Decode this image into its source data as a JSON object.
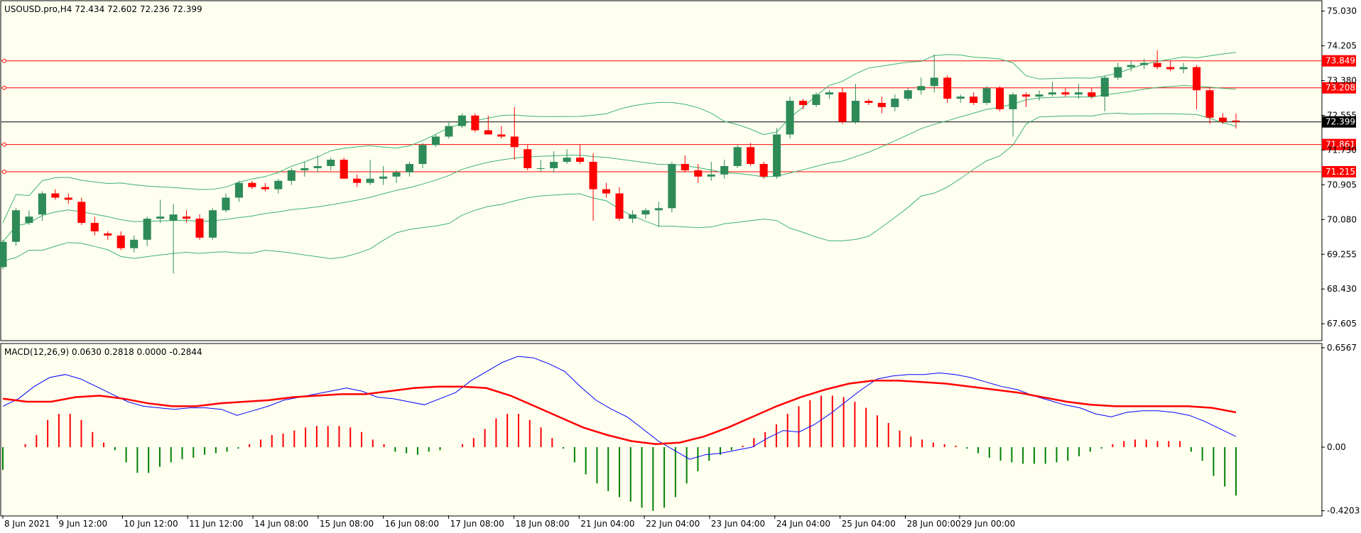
{
  "main": {
    "title": "USOUSD.pro,H4  72.434 72.602 72.236 72.399",
    "price_ticks": [
      "75.030",
      "74.205",
      "73.380",
      "72.555",
      "71.730",
      "70.905",
      "70.080",
      "69.255",
      "68.430",
      "67.605"
    ],
    "price_tick_values": [
      75.03,
      74.205,
      73.38,
      72.555,
      71.73,
      70.905,
      70.08,
      69.255,
      68.43,
      67.605
    ],
    "ylim": [
      67.22,
      75.26
    ]
  },
  "macd": {
    "title": "MACD(12,26,9) 0.0630 0.2818 0.0000 -0.2844",
    "ticks": [
      "0.6567",
      "0.00",
      "-0.4203"
    ],
    "tick_values": [
      0.6567,
      0.0,
      -0.4203
    ],
    "ylim": [
      -0.45,
      0.68
    ]
  },
  "time_labels": [
    "8 Jun 2021",
    "9 Jun 12:00",
    "10 Jun 12:00",
    "11 Jun 12:00",
    "14 Jun 08:00",
    "15 Jun 08:00",
    "16 Jun 08:00",
    "17 Jun 08:00",
    "18 Jun 08:00",
    "21 Jun 04:00",
    "22 Jun 04:00",
    "23 Jun 04:00",
    "24 Jun 04:00",
    "25 Jun 04:00",
    "28 Jun 00:00",
    "29 Jun 00:00"
  ],
  "colors": {
    "background": "#fffff0",
    "frame": "#000000",
    "bull": "#2e8b57",
    "bear": "#ff0000",
    "bands": "#3cb371",
    "macd_line": "#0000ff",
    "signal_line": "#ff0000",
    "hline": "#ff0000",
    "current_price": "#000000"
  },
  "chart_data": [
    {
      "type": "candlestick",
      "title": "USOUSD.pro,H4  72.434 72.602 72.236 72.399",
      "series_bands": [
        "upper",
        "middle",
        "lower"
      ],
      "horizontal_lines": [
        73.849,
        73.208,
        71.861,
        71.215
      ],
      "current_price": 72.399,
      "candles": [
        {
          "o": 68.95,
          "h": 69.6,
          "l": 68.9,
          "c": 69.55
        },
        {
          "o": 69.55,
          "h": 70.35,
          "l": 69.45,
          "c": 70.3
        },
        {
          "o": 70.0,
          "h": 70.3,
          "l": 69.95,
          "c": 70.15
        },
        {
          "o": 70.2,
          "h": 70.75,
          "l": 70.05,
          "c": 70.7
        },
        {
          "o": 70.7,
          "h": 70.8,
          "l": 70.55,
          "c": 70.6
        },
        {
          "o": 70.6,
          "h": 70.7,
          "l": 70.45,
          "c": 70.55
        },
        {
          "o": 70.5,
          "h": 70.6,
          "l": 69.95,
          "c": 70.0
        },
        {
          "o": 70.0,
          "h": 70.15,
          "l": 69.7,
          "c": 69.8
        },
        {
          "o": 69.75,
          "h": 69.8,
          "l": 69.6,
          "c": 69.7
        },
        {
          "o": 69.7,
          "h": 69.8,
          "l": 69.35,
          "c": 69.4
        },
        {
          "o": 69.4,
          "h": 69.7,
          "l": 69.3,
          "c": 69.6
        },
        {
          "o": 69.6,
          "h": 70.15,
          "l": 69.45,
          "c": 70.1
        },
        {
          "o": 70.1,
          "h": 70.55,
          "l": 70.0,
          "c": 70.15
        },
        {
          "o": 70.05,
          "h": 70.45,
          "l": 68.8,
          "c": 70.2
        },
        {
          "o": 70.15,
          "h": 70.3,
          "l": 70.0,
          "c": 70.1
        },
        {
          "o": 70.1,
          "h": 70.2,
          "l": 69.6,
          "c": 69.65
        },
        {
          "o": 69.65,
          "h": 70.35,
          "l": 69.6,
          "c": 70.3
        },
        {
          "o": 70.3,
          "h": 70.7,
          "l": 70.25,
          "c": 70.6
        },
        {
          "o": 70.6,
          "h": 71.0,
          "l": 70.5,
          "c": 70.95
        },
        {
          "o": 70.95,
          "h": 71.0,
          "l": 70.8,
          "c": 70.85
        },
        {
          "o": 70.85,
          "h": 70.95,
          "l": 70.75,
          "c": 70.8
        },
        {
          "o": 70.8,
          "h": 71.05,
          "l": 70.7,
          "c": 71.0
        },
        {
          "o": 71.0,
          "h": 71.3,
          "l": 70.9,
          "c": 71.25
        },
        {
          "o": 71.25,
          "h": 71.45,
          "l": 71.1,
          "c": 71.3
        },
        {
          "o": 71.3,
          "h": 71.6,
          "l": 71.2,
          "c": 71.35
        },
        {
          "o": 71.35,
          "h": 71.55,
          "l": 71.25,
          "c": 71.5
        },
        {
          "o": 71.5,
          "h": 71.55,
          "l": 71.05,
          "c": 71.05
        },
        {
          "o": 71.05,
          "h": 71.15,
          "l": 70.85,
          "c": 70.95
        },
        {
          "o": 70.95,
          "h": 71.5,
          "l": 70.9,
          "c": 71.05
        },
        {
          "o": 71.05,
          "h": 71.35,
          "l": 70.9,
          "c": 71.1
        },
        {
          "o": 71.1,
          "h": 71.25,
          "l": 70.95,
          "c": 71.2
        },
        {
          "o": 71.2,
          "h": 71.45,
          "l": 71.1,
          "c": 71.4
        },
        {
          "o": 71.4,
          "h": 71.9,
          "l": 71.3,
          "c": 71.85
        },
        {
          "o": 71.85,
          "h": 72.1,
          "l": 71.8,
          "c": 72.05
        },
        {
          "o": 72.05,
          "h": 72.4,
          "l": 72.0,
          "c": 72.3
        },
        {
          "o": 72.3,
          "h": 72.6,
          "l": 72.25,
          "c": 72.55
        },
        {
          "o": 72.55,
          "h": 72.6,
          "l": 72.15,
          "c": 72.2
        },
        {
          "o": 72.2,
          "h": 72.55,
          "l": 72.1,
          "c": 72.1
        },
        {
          "o": 72.1,
          "h": 72.3,
          "l": 72.0,
          "c": 72.05
        },
        {
          "o": 72.05,
          "h": 72.75,
          "l": 71.5,
          "c": 71.8
        },
        {
          "o": 71.75,
          "h": 71.85,
          "l": 71.25,
          "c": 71.3
        },
        {
          "o": 71.3,
          "h": 71.5,
          "l": 71.2,
          "c": 71.3
        },
        {
          "o": 71.3,
          "h": 71.7,
          "l": 71.2,
          "c": 71.45
        },
        {
          "o": 71.45,
          "h": 71.75,
          "l": 71.4,
          "c": 71.55
        },
        {
          "o": 71.55,
          "h": 71.85,
          "l": 71.4,
          "c": 71.45
        },
        {
          "o": 71.45,
          "h": 71.65,
          "l": 70.05,
          "c": 70.8
        },
        {
          "o": 70.8,
          "h": 70.95,
          "l": 70.6,
          "c": 70.7
        },
        {
          "o": 70.7,
          "h": 70.85,
          "l": 70.05,
          "c": 70.1
        },
        {
          "o": 70.1,
          "h": 70.3,
          "l": 70.0,
          "c": 70.2
        },
        {
          "o": 70.2,
          "h": 70.35,
          "l": 70.1,
          "c": 70.3
        },
        {
          "o": 70.3,
          "h": 70.5,
          "l": 69.9,
          "c": 70.35
        },
        {
          "o": 70.35,
          "h": 71.45,
          "l": 70.25,
          "c": 71.4
        },
        {
          "o": 71.4,
          "h": 71.6,
          "l": 71.2,
          "c": 71.25
        },
        {
          "o": 71.25,
          "h": 71.4,
          "l": 70.95,
          "c": 71.1
        },
        {
          "o": 71.1,
          "h": 71.45,
          "l": 71.0,
          "c": 71.15
        },
        {
          "o": 71.15,
          "h": 71.5,
          "l": 71.05,
          "c": 71.35
        },
        {
          "o": 71.35,
          "h": 71.85,
          "l": 71.3,
          "c": 71.8
        },
        {
          "o": 71.8,
          "h": 71.9,
          "l": 71.35,
          "c": 71.4
        },
        {
          "o": 71.4,
          "h": 71.45,
          "l": 71.05,
          "c": 71.1
        },
        {
          "o": 71.1,
          "h": 72.25,
          "l": 71.05,
          "c": 72.1
        },
        {
          "o": 72.1,
          "h": 73.0,
          "l": 72.0,
          "c": 72.9
        },
        {
          "o": 72.9,
          "h": 72.95,
          "l": 72.7,
          "c": 72.8
        },
        {
          "o": 72.8,
          "h": 73.1,
          "l": 72.75,
          "c": 73.05
        },
        {
          "o": 73.05,
          "h": 73.15,
          "l": 72.95,
          "c": 73.1
        },
        {
          "o": 73.1,
          "h": 73.2,
          "l": 72.35,
          "c": 72.4
        },
        {
          "o": 72.4,
          "h": 73.3,
          "l": 72.35,
          "c": 72.9
        },
        {
          "o": 72.9,
          "h": 72.95,
          "l": 72.8,
          "c": 72.85
        },
        {
          "o": 72.85,
          "h": 73.0,
          "l": 72.6,
          "c": 72.75
        },
        {
          "o": 72.75,
          "h": 73.05,
          "l": 72.65,
          "c": 72.95
        },
        {
          "o": 72.95,
          "h": 73.2,
          "l": 72.9,
          "c": 73.15
        },
        {
          "o": 73.15,
          "h": 73.45,
          "l": 73.05,
          "c": 73.25
        },
        {
          "o": 73.25,
          "h": 74.0,
          "l": 73.1,
          "c": 73.45
        },
        {
          "o": 73.45,
          "h": 73.5,
          "l": 72.85,
          "c": 72.95
        },
        {
          "o": 72.95,
          "h": 73.05,
          "l": 72.85,
          "c": 73.0
        },
        {
          "o": 73.0,
          "h": 73.1,
          "l": 72.8,
          "c": 72.85
        },
        {
          "o": 72.85,
          "h": 73.25,
          "l": 72.8,
          "c": 73.2
        },
        {
          "o": 73.2,
          "h": 73.25,
          "l": 72.65,
          "c": 72.7
        },
        {
          "o": 72.7,
          "h": 73.1,
          "l": 72.05,
          "c": 73.05
        },
        {
          "o": 73.05,
          "h": 73.1,
          "l": 72.75,
          "c": 73.0
        },
        {
          "o": 73.0,
          "h": 73.15,
          "l": 72.9,
          "c": 73.05
        },
        {
          "o": 73.05,
          "h": 73.35,
          "l": 73.0,
          "c": 73.1
        },
        {
          "o": 73.1,
          "h": 73.2,
          "l": 73.0,
          "c": 73.05
        },
        {
          "o": 73.05,
          "h": 73.3,
          "l": 72.95,
          "c": 73.1
        },
        {
          "o": 73.1,
          "h": 73.2,
          "l": 72.95,
          "c": 73.0
        },
        {
          "o": 73.0,
          "h": 73.5,
          "l": 72.65,
          "c": 73.45
        },
        {
          "o": 73.45,
          "h": 73.8,
          "l": 73.4,
          "c": 73.7
        },
        {
          "o": 73.7,
          "h": 73.85,
          "l": 73.6,
          "c": 73.75
        },
        {
          "o": 73.75,
          "h": 73.9,
          "l": 73.65,
          "c": 73.8
        },
        {
          "o": 73.8,
          "h": 74.1,
          "l": 73.65,
          "c": 73.7
        },
        {
          "o": 73.7,
          "h": 73.85,
          "l": 73.6,
          "c": 73.65
        },
        {
          "o": 73.65,
          "h": 73.8,
          "l": 73.55,
          "c": 73.7
        },
        {
          "o": 73.7,
          "h": 73.75,
          "l": 72.7,
          "c": 73.15
        },
        {
          "o": 73.15,
          "h": 73.2,
          "l": 72.35,
          "c": 72.5
        },
        {
          "o": 72.5,
          "h": 72.6,
          "l": 72.35,
          "c": 72.4
        },
        {
          "o": 72.43,
          "h": 72.6,
          "l": 72.24,
          "c": 72.4
        }
      ]
    },
    {
      "type": "macd",
      "title": "MACD(12,26,9) 0.0630 0.2818 0.0000 -0.2844",
      "histogram": [
        -0.15,
        0.0,
        0.02,
        0.08,
        0.18,
        0.22,
        0.22,
        0.18,
        0.1,
        0.03,
        -0.02,
        -0.1,
        -0.17,
        -0.17,
        -0.13,
        -0.1,
        -0.08,
        -0.07,
        -0.05,
        -0.04,
        -0.03,
        -0.01,
        0.02,
        0.05,
        0.08,
        0.09,
        0.11,
        0.13,
        0.14,
        0.14,
        0.14,
        0.13,
        0.1,
        0.05,
        0.02,
        -0.03,
        -0.04,
        -0.05,
        -0.03,
        -0.02,
        0.0,
        0.02,
        0.06,
        0.12,
        0.19,
        0.22,
        0.22,
        0.18,
        0.13,
        0.06,
        -0.01,
        -0.1,
        -0.18,
        -0.24,
        -0.29,
        -0.33,
        -0.36,
        -0.4,
        -0.42,
        -0.4,
        -0.33,
        -0.24,
        -0.16,
        -0.09,
        -0.05,
        -0.02,
        0.01,
        0.06,
        0.1,
        0.15,
        0.22,
        0.27,
        0.31,
        0.34,
        0.34,
        0.33,
        0.3,
        0.26,
        0.21,
        0.16,
        0.11,
        0.07,
        0.05,
        0.03,
        0.02,
        0.01,
        -0.01,
        -0.04,
        -0.07,
        -0.09,
        -0.1,
        -0.11,
        -0.11,
        -0.11,
        -0.1,
        -0.09,
        -0.06,
        -0.03,
        -0.01,
        0.02,
        0.04,
        0.05,
        0.05,
        0.04,
        0.04,
        0.04,
        -0.03,
        -0.09,
        -0.19,
        -0.26,
        -0.32
      ],
      "macd_line": [
        0.27,
        0.32,
        0.4,
        0.46,
        0.48,
        0.45,
        0.4,
        0.35,
        0.3,
        0.27,
        0.26,
        0.25,
        0.26,
        0.26,
        0.25,
        0.21,
        0.24,
        0.27,
        0.31,
        0.33,
        0.35,
        0.37,
        0.39,
        0.37,
        0.33,
        0.32,
        0.3,
        0.28,
        0.32,
        0.36,
        0.44,
        0.5,
        0.56,
        0.6,
        0.59,
        0.55,
        0.5,
        0.4,
        0.31,
        0.25,
        0.2,
        0.12,
        0.04,
        -0.02,
        -0.08,
        -0.05,
        -0.04,
        -0.02,
        0.0,
        0.06,
        0.11,
        0.1,
        0.15,
        0.22,
        0.3,
        0.38,
        0.45,
        0.47,
        0.48,
        0.48,
        0.49,
        0.48,
        0.46,
        0.43,
        0.4,
        0.38,
        0.34,
        0.31,
        0.28,
        0.26,
        0.22,
        0.2,
        0.23,
        0.24,
        0.24,
        0.23,
        0.21,
        0.17,
        0.12,
        0.07
      ],
      "signal_line": [
        0.32,
        0.3,
        0.3,
        0.33,
        0.34,
        0.32,
        0.29,
        0.27,
        0.27,
        0.29,
        0.3,
        0.31,
        0.33,
        0.34,
        0.35,
        0.35,
        0.37,
        0.39,
        0.4,
        0.4,
        0.39,
        0.34,
        0.27,
        0.2,
        0.13,
        0.08,
        0.04,
        0.02,
        0.03,
        0.07,
        0.13,
        0.2,
        0.27,
        0.33,
        0.38,
        0.42,
        0.44,
        0.44,
        0.43,
        0.42,
        0.4,
        0.38,
        0.36,
        0.33,
        0.3,
        0.28,
        0.27,
        0.27,
        0.27,
        0.27,
        0.26,
        0.23
      ],
      "ylim": [
        -0.45,
        0.68
      ]
    }
  ]
}
